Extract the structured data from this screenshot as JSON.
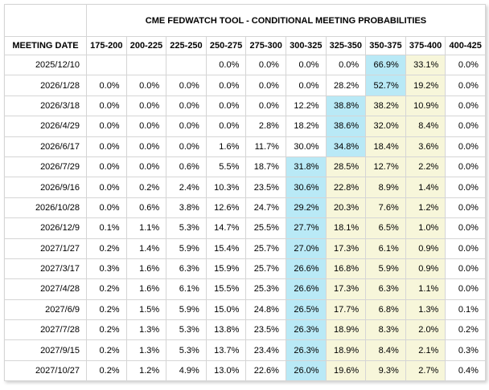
{
  "window": {
    "title": "CME FEDWATCH TOOL - CONDITIONAL MEETING PROBABILITIES"
  },
  "table": {
    "corner_label": "",
    "meeting_date_header": "MEETING DATE",
    "rate_range_headers": [
      "175-200",
      "200-225",
      "225-250",
      "250-275",
      "275-300",
      "300-325",
      "325-350",
      "350-375",
      "375-400",
      "400-425"
    ],
    "rows": [
      {
        "date": "2025/12/10",
        "cells": [
          "",
          "",
          "",
          "0.0%",
          "0.0%",
          "0.0%",
          "0.0%",
          "66.9%",
          "33.1%",
          "0.0%"
        ],
        "blue_index": 7,
        "yellow_indices": [
          8
        ]
      },
      {
        "date": "2026/1/28",
        "cells": [
          "0.0%",
          "0.0%",
          "0.0%",
          "0.0%",
          "0.0%",
          "0.0%",
          "28.2%",
          "52.7%",
          "19.2%",
          "0.0%"
        ],
        "blue_index": 7,
        "yellow_indices": [
          8
        ]
      },
      {
        "date": "2026/3/18",
        "cells": [
          "0.0%",
          "0.0%",
          "0.0%",
          "0.0%",
          "0.0%",
          "12.2%",
          "38.8%",
          "38.2%",
          "10.9%",
          "0.0%"
        ],
        "blue_index": 6,
        "yellow_indices": [
          7,
          8
        ]
      },
      {
        "date": "2026/4/29",
        "cells": [
          "0.0%",
          "0.0%",
          "0.0%",
          "0.0%",
          "2.8%",
          "18.2%",
          "38.6%",
          "32.0%",
          "8.4%",
          "0.0%"
        ],
        "blue_index": 6,
        "yellow_indices": [
          7,
          8
        ]
      },
      {
        "date": "2026/6/17",
        "cells": [
          "0.0%",
          "0.0%",
          "0.0%",
          "1.6%",
          "11.7%",
          "30.0%",
          "34.8%",
          "18.4%",
          "3.6%",
          "0.0%"
        ],
        "blue_index": 6,
        "yellow_indices": [
          7,
          8
        ]
      },
      {
        "date": "2026/7/29",
        "cells": [
          "0.0%",
          "0.0%",
          "0.6%",
          "5.5%",
          "18.7%",
          "31.8%",
          "28.5%",
          "12.7%",
          "2.2%",
          "0.0%"
        ],
        "blue_index": 5,
        "yellow_indices": [
          6,
          7,
          8
        ]
      },
      {
        "date": "2026/9/16",
        "cells": [
          "0.0%",
          "0.2%",
          "2.4%",
          "10.3%",
          "23.5%",
          "30.6%",
          "22.8%",
          "8.9%",
          "1.4%",
          "0.0%"
        ],
        "blue_index": 5,
        "yellow_indices": [
          6,
          7,
          8
        ]
      },
      {
        "date": "2026/10/28",
        "cells": [
          "0.0%",
          "0.6%",
          "3.8%",
          "12.6%",
          "24.7%",
          "29.2%",
          "20.3%",
          "7.6%",
          "1.2%",
          "0.0%"
        ],
        "blue_index": 5,
        "yellow_indices": [
          6,
          7,
          8
        ]
      },
      {
        "date": "2026/12/9",
        "cells": [
          "0.1%",
          "1.1%",
          "5.3%",
          "14.7%",
          "25.5%",
          "27.7%",
          "18.1%",
          "6.5%",
          "1.0%",
          "0.0%"
        ],
        "blue_index": 5,
        "yellow_indices": [
          6,
          7,
          8
        ]
      },
      {
        "date": "2027/1/27",
        "cells": [
          "0.2%",
          "1.4%",
          "5.9%",
          "15.4%",
          "25.7%",
          "27.0%",
          "17.3%",
          "6.1%",
          "0.9%",
          "0.0%"
        ],
        "blue_index": 5,
        "yellow_indices": [
          6,
          7,
          8
        ]
      },
      {
        "date": "2027/3/17",
        "cells": [
          "0.3%",
          "1.6%",
          "6.3%",
          "15.9%",
          "25.7%",
          "26.6%",
          "16.8%",
          "5.9%",
          "0.9%",
          "0.0%"
        ],
        "blue_index": 5,
        "yellow_indices": [
          6,
          7,
          8
        ]
      },
      {
        "date": "2027/4/28",
        "cells": [
          "0.2%",
          "1.6%",
          "6.1%",
          "15.5%",
          "25.3%",
          "26.6%",
          "17.3%",
          "6.3%",
          "1.1%",
          "0.0%"
        ],
        "blue_index": 5,
        "yellow_indices": [
          6,
          7,
          8
        ]
      },
      {
        "date": "2027/6/9",
        "cells": [
          "0.2%",
          "1.5%",
          "5.9%",
          "15.0%",
          "24.8%",
          "26.5%",
          "17.7%",
          "6.8%",
          "1.3%",
          "0.1%"
        ],
        "blue_index": 5,
        "yellow_indices": [
          6,
          7,
          8
        ]
      },
      {
        "date": "2027/7/28",
        "cells": [
          "0.2%",
          "1.3%",
          "5.3%",
          "13.8%",
          "23.5%",
          "26.3%",
          "18.9%",
          "8.3%",
          "2.0%",
          "0.2%"
        ],
        "blue_index": 5,
        "yellow_indices": [
          6,
          7,
          8
        ]
      },
      {
        "date": "2027/9/15",
        "cells": [
          "0.2%",
          "1.3%",
          "5.3%",
          "13.7%",
          "23.4%",
          "26.3%",
          "18.9%",
          "8.4%",
          "2.1%",
          "0.3%"
        ],
        "blue_index": 5,
        "yellow_indices": [
          6,
          7,
          8
        ]
      },
      {
        "date": "2027/10/27",
        "cells": [
          "0.2%",
          "1.2%",
          "4.9%",
          "13.0%",
          "22.6%",
          "26.0%",
          "19.6%",
          "9.3%",
          "2.7%",
          "0.4%"
        ],
        "blue_index": 5,
        "yellow_indices": [
          6,
          7,
          8
        ]
      }
    ]
  },
  "colors": {
    "highlight_blue": "#b9e9f6",
    "highlight_yellow": "#f7f6da",
    "border": "#d5d5d5",
    "outer_border": "#b3b3b3",
    "text": "#000000"
  }
}
